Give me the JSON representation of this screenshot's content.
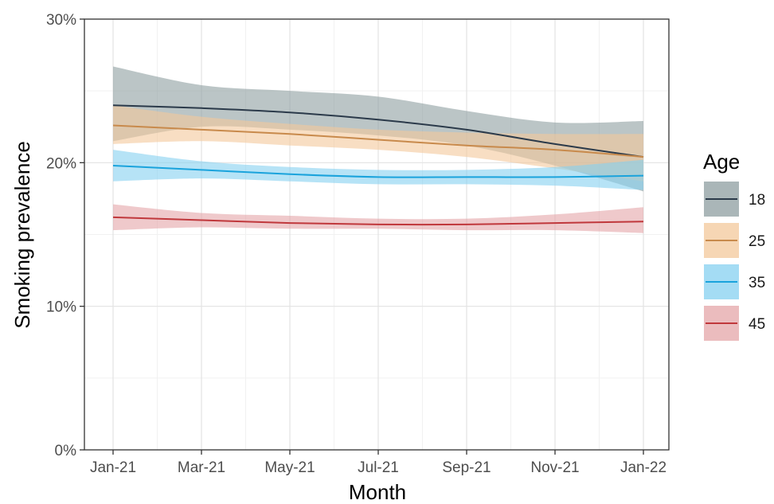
{
  "chart_data": {
    "type": "line",
    "title": "",
    "xlabel": "Month",
    "ylabel": "Smoking prevalence",
    "x_ticks": [
      "Jan-21",
      "Mar-21",
      "May-21",
      "Jul-21",
      "Sep-21",
      "Nov-21",
      "Jan-22"
    ],
    "x_tick_months": [
      0,
      2,
      4,
      6,
      8,
      10,
      12
    ],
    "xlim": [
      0,
      12
    ],
    "y_ticks": [
      "0%",
      "10%",
      "20%",
      "30%"
    ],
    "y_tick_values": [
      0,
      10,
      20,
      30
    ],
    "ylim": [
      0,
      30
    ],
    "grid": true,
    "legend": {
      "title": "Age",
      "position": "right"
    },
    "x": [
      0,
      2,
      4,
      6,
      8,
      10,
      12
    ],
    "series": [
      {
        "name": "18",
        "color": "#2b3a4a",
        "band_color": "#8e9ea0",
        "values": [
          24.0,
          23.8,
          23.5,
          23.0,
          22.3,
          21.3,
          20.4
        ],
        "lower": [
          21.5,
          22.5,
          22.3,
          21.9,
          21.2,
          19.8,
          18.0
        ],
        "upper": [
          26.7,
          25.4,
          25.0,
          24.6,
          23.6,
          22.8,
          22.9
        ]
      },
      {
        "name": "25",
        "color": "#c88a4c",
        "band_color": "#f3c89b",
        "values": [
          22.6,
          22.3,
          22.0,
          21.6,
          21.2,
          20.9,
          20.4
        ],
        "lower": [
          21.3,
          21.5,
          21.2,
          20.9,
          20.4,
          19.6,
          18.7
        ],
        "upper": [
          24.0,
          23.2,
          22.7,
          22.3,
          22.1,
          22.0,
          22.0
        ]
      },
      {
        "name": "35",
        "color": "#1aa3dc",
        "band_color": "#86d0f0",
        "values": [
          19.8,
          19.5,
          19.2,
          19.0,
          19.0,
          19.0,
          19.1
        ],
        "lower": [
          18.7,
          18.9,
          18.7,
          18.5,
          18.5,
          18.4,
          18.1
        ],
        "upper": [
          20.9,
          20.1,
          19.7,
          19.5,
          19.5,
          19.7,
          20.2
        ]
      },
      {
        "name": "45",
        "color": "#c0383c",
        "band_color": "#e4a5a8",
        "values": [
          16.2,
          16.0,
          15.8,
          15.7,
          15.7,
          15.8,
          15.9
        ],
        "lower": [
          15.3,
          15.5,
          15.4,
          15.4,
          15.3,
          15.3,
          15.1
        ],
        "upper": [
          17.1,
          16.5,
          16.3,
          16.1,
          16.1,
          16.4,
          16.9
        ]
      }
    ]
  }
}
